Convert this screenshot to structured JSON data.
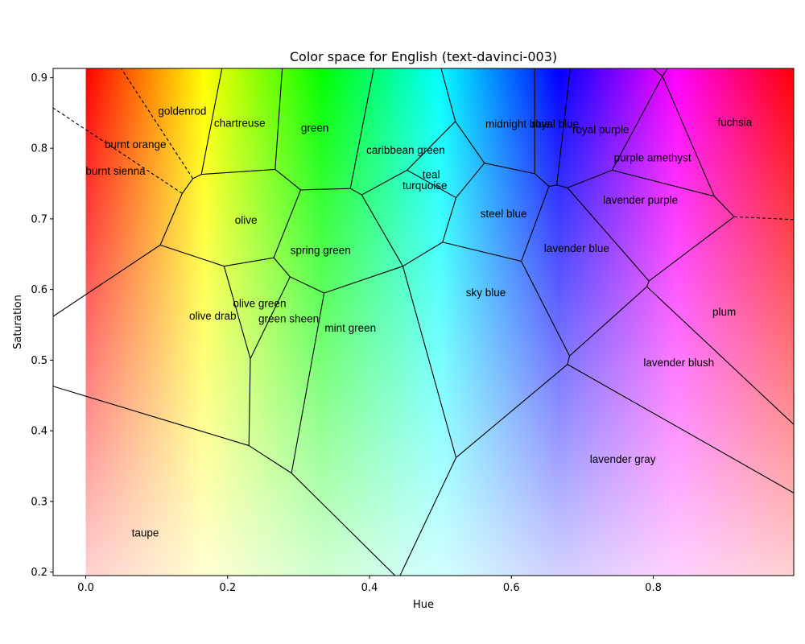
{
  "chart_data": {
    "type": "voronoi",
    "title": "Color space for English (text-davinci-003)",
    "xlabel": "Hue",
    "ylabel": "Saturation",
    "xlim": [
      -0.046,
      0.998
    ],
    "ylim": [
      0.195,
      0.913
    ],
    "xticks": [
      {
        "v": 0.0,
        "label": "0.0"
      },
      {
        "v": 0.2,
        "label": "0.2"
      },
      {
        "v": 0.4,
        "label": "0.4"
      },
      {
        "v": 0.6,
        "label": "0.6"
      },
      {
        "v": 0.8,
        "label": "0.8"
      }
    ],
    "yticks": [
      {
        "v": 0.2,
        "label": "0.2"
      },
      {
        "v": 0.3,
        "label": "0.3"
      },
      {
        "v": 0.4,
        "label": "0.4"
      },
      {
        "v": 0.5,
        "label": "0.5"
      },
      {
        "v": 0.6,
        "label": "0.6"
      },
      {
        "v": 0.7,
        "label": "0.7"
      },
      {
        "v": 0.8,
        "label": "0.8"
      },
      {
        "v": 0.9,
        "label": "0.9"
      }
    ],
    "background": "HSV color field: hue along x (0 to 1), saturation along y, full value",
    "labels": [
      {
        "text": "goldenrod",
        "x": 0.136,
        "y": 0.853
      },
      {
        "text": "burnt orange",
        "x": 0.07,
        "y": 0.806
      },
      {
        "text": "burnt sienna",
        "x": 0.042,
        "y": 0.768
      },
      {
        "text": "chartreuse",
        "x": 0.217,
        "y": 0.836
      },
      {
        "text": "green",
        "x": 0.323,
        "y": 0.829
      },
      {
        "text": "caribbean green",
        "x": 0.451,
        "y": 0.798
      },
      {
        "text": "midnight blue",
        "x": 0.609,
        "y": 0.835
      },
      {
        "text": "royal blue",
        "x": 0.662,
        "y": 0.835
      },
      {
        "text": "royal purple",
        "x": 0.726,
        "y": 0.827
      },
      {
        "text": "fuchsia",
        "x": 0.915,
        "y": 0.837
      },
      {
        "text": "teal",
        "x": 0.487,
        "y": 0.763
      },
      {
        "text": "turquoise",
        "x": 0.478,
        "y": 0.748
      },
      {
        "text": "purple amethyst",
        "x": 0.799,
        "y": 0.787
      },
      {
        "text": "olive",
        "x": 0.226,
        "y": 0.699
      },
      {
        "text": "lavender purple",
        "x": 0.782,
        "y": 0.727
      },
      {
        "text": "steel blue",
        "x": 0.589,
        "y": 0.708
      },
      {
        "text": "spring green",
        "x": 0.331,
        "y": 0.656
      },
      {
        "text": "lavender blue",
        "x": 0.692,
        "y": 0.659
      },
      {
        "text": "sky blue",
        "x": 0.564,
        "y": 0.596
      },
      {
        "text": "olive green",
        "x": 0.245,
        "y": 0.581
      },
      {
        "text": "plum",
        "x": 0.9,
        "y": 0.569
      },
      {
        "text": "olive drab",
        "x": 0.179,
        "y": 0.563
      },
      {
        "text": "green sheen",
        "x": 0.286,
        "y": 0.559
      },
      {
        "text": "mint green",
        "x": 0.373,
        "y": 0.546
      },
      {
        "text": "lavender blush",
        "x": 0.836,
        "y": 0.497
      },
      {
        "text": "lavender gray",
        "x": 0.757,
        "y": 0.36
      },
      {
        "text": "taupe",
        "x": 0.084,
        "y": 0.256
      }
    ],
    "edges": [
      {
        "p": [
          [
            0.105,
            0.663
          ],
          [
            -0.046,
            0.562
          ]
        ]
      },
      {
        "p": [
          [
            0.105,
            0.663
          ],
          [
            0.136,
            0.736
          ]
        ]
      },
      {
        "p": [
          [
            0.105,
            0.663
          ],
          [
            0.195,
            0.633
          ]
        ]
      },
      {
        "p": [
          [
            0.136,
            0.736
          ],
          [
            0.151,
            0.757
          ]
        ]
      },
      {
        "p": [
          [
            0.136,
            0.736
          ],
          [
            -0.046,
            0.857
          ]
        ],
        "dash": true
      },
      {
        "p": [
          [
            0.151,
            0.757
          ],
          [
            0.163,
            0.763
          ]
        ]
      },
      {
        "p": [
          [
            0.151,
            0.757
          ],
          [
            0.05,
            0.913
          ]
        ],
        "dash": true
      },
      {
        "p": [
          [
            0.163,
            0.763
          ],
          [
            0.192,
            0.913
          ]
        ]
      },
      {
        "p": [
          [
            0.163,
            0.763
          ],
          [
            0.267,
            0.77
          ]
        ]
      },
      {
        "p": [
          [
            0.267,
            0.77
          ],
          [
            0.277,
            0.913
          ]
        ]
      },
      {
        "p": [
          [
            0.267,
            0.77
          ],
          [
            0.303,
            0.741
          ]
        ]
      },
      {
        "p": [
          [
            0.303,
            0.741
          ],
          [
            0.373,
            0.743
          ]
        ]
      },
      {
        "p": [
          [
            0.303,
            0.741
          ],
          [
            0.265,
            0.645
          ]
        ]
      },
      {
        "p": [
          [
            0.373,
            0.743
          ],
          [
            0.406,
            0.913
          ]
        ]
      },
      {
        "p": [
          [
            0.373,
            0.743
          ],
          [
            0.389,
            0.734
          ]
        ]
      },
      {
        "p": [
          [
            0.389,
            0.734
          ],
          [
            0.453,
            0.769
          ]
        ]
      },
      {
        "p": [
          [
            0.389,
            0.734
          ],
          [
            0.447,
            0.633
          ]
        ]
      },
      {
        "p": [
          [
            0.453,
            0.769
          ],
          [
            0.521,
            0.838
          ]
        ]
      },
      {
        "p": [
          [
            0.453,
            0.769
          ],
          [
            0.522,
            0.73
          ]
        ]
      },
      {
        "p": [
          [
            0.521,
            0.838
          ],
          [
            0.501,
            0.913
          ]
        ]
      },
      {
        "p": [
          [
            0.521,
            0.838
          ],
          [
            0.562,
            0.779
          ]
        ]
      },
      {
        "p": [
          [
            0.562,
            0.779
          ],
          [
            0.522,
            0.73
          ]
        ]
      },
      {
        "p": [
          [
            0.562,
            0.779
          ],
          [
            0.633,
            0.764
          ]
        ]
      },
      {
        "p": [
          [
            0.522,
            0.73
          ],
          [
            0.503,
            0.667
          ]
        ]
      },
      {
        "p": [
          [
            0.503,
            0.667
          ],
          [
            0.447,
            0.633
          ]
        ]
      },
      {
        "p": [
          [
            0.503,
            0.667
          ],
          [
            0.614,
            0.64
          ]
        ]
      },
      {
        "p": [
          [
            0.633,
            0.764
          ],
          [
            0.633,
            0.913
          ]
        ]
      },
      {
        "p": [
          [
            0.633,
            0.764
          ],
          [
            0.653,
            0.746
          ]
        ]
      },
      {
        "p": [
          [
            0.653,
            0.746
          ],
          [
            0.664,
            0.748
          ]
        ]
      },
      {
        "p": [
          [
            0.653,
            0.746
          ],
          [
            0.614,
            0.64
          ]
        ]
      },
      {
        "p": [
          [
            0.664,
            0.748
          ],
          [
            0.683,
            0.913
          ]
        ]
      },
      {
        "p": [
          [
            0.664,
            0.748
          ],
          [
            0.679,
            0.744
          ]
        ]
      },
      {
        "p": [
          [
            0.679,
            0.744
          ],
          [
            0.742,
            0.769
          ]
        ]
      },
      {
        "p": [
          [
            0.679,
            0.744
          ],
          [
            0.794,
            0.612
          ]
        ]
      },
      {
        "p": [
          [
            0.742,
            0.769
          ],
          [
            0.813,
            0.902
          ]
        ]
      },
      {
        "p": [
          [
            0.742,
            0.769
          ],
          [
            0.886,
            0.732
          ]
        ]
      },
      {
        "p": [
          [
            0.813,
            0.902
          ],
          [
            0.8,
            0.913
          ]
        ]
      },
      {
        "p": [
          [
            0.813,
            0.902
          ],
          [
            0.82,
            0.913
          ]
        ]
      },
      {
        "p": [
          [
            0.813,
            0.902
          ],
          [
            0.886,
            0.732
          ]
        ]
      },
      {
        "p": [
          [
            0.886,
            0.732
          ],
          [
            0.914,
            0.703
          ]
        ]
      },
      {
        "p": [
          [
            0.914,
            0.703
          ],
          [
            0.998,
            0.699
          ]
        ],
        "dash": true
      },
      {
        "p": [
          [
            0.914,
            0.703
          ],
          [
            0.794,
            0.612
          ]
        ]
      },
      {
        "p": [
          [
            0.794,
            0.612
          ],
          [
            0.791,
            0.604
          ]
        ]
      },
      {
        "p": [
          [
            0.791,
            0.604
          ],
          [
            0.682,
            0.506
          ]
        ]
      },
      {
        "p": [
          [
            0.791,
            0.604
          ],
          [
            0.998,
            0.409
          ]
        ]
      },
      {
        "p": [
          [
            0.614,
            0.64
          ],
          [
            0.682,
            0.506
          ]
        ]
      },
      {
        "p": [
          [
            0.682,
            0.506
          ],
          [
            0.679,
            0.494
          ]
        ]
      },
      {
        "p": [
          [
            0.679,
            0.494
          ],
          [
            0.522,
            0.362
          ]
        ]
      },
      {
        "p": [
          [
            0.679,
            0.494
          ],
          [
            0.998,
            0.312
          ]
        ]
      },
      {
        "p": [
          [
            0.447,
            0.633
          ],
          [
            0.336,
            0.595
          ]
        ]
      },
      {
        "p": [
          [
            0.447,
            0.633
          ],
          [
            0.522,
            0.362
          ]
        ]
      },
      {
        "p": [
          [
            0.522,
            0.362
          ],
          [
            0.443,
            0.195
          ]
        ]
      },
      {
        "p": [
          [
            0.336,
            0.595
          ],
          [
            0.288,
            0.618
          ]
        ]
      },
      {
        "p": [
          [
            0.336,
            0.595
          ],
          [
            0.29,
            0.34
          ]
        ]
      },
      {
        "p": [
          [
            0.288,
            0.618
          ],
          [
            0.265,
            0.645
          ]
        ]
      },
      {
        "p": [
          [
            0.288,
            0.618
          ],
          [
            0.232,
            0.502
          ]
        ]
      },
      {
        "p": [
          [
            0.265,
            0.645
          ],
          [
            0.195,
            0.633
          ]
        ]
      },
      {
        "p": [
          [
            0.195,
            0.633
          ],
          [
            0.232,
            0.502
          ]
        ]
      },
      {
        "p": [
          [
            0.232,
            0.502
          ],
          [
            0.23,
            0.379
          ]
        ]
      },
      {
        "p": [
          [
            0.23,
            0.379
          ],
          [
            0.29,
            0.34
          ]
        ]
      },
      {
        "p": [
          [
            0.23,
            0.379
          ],
          [
            -0.046,
            0.463
          ]
        ]
      },
      {
        "p": [
          [
            0.29,
            0.34
          ],
          [
            0.436,
            0.195
          ]
        ]
      }
    ]
  }
}
